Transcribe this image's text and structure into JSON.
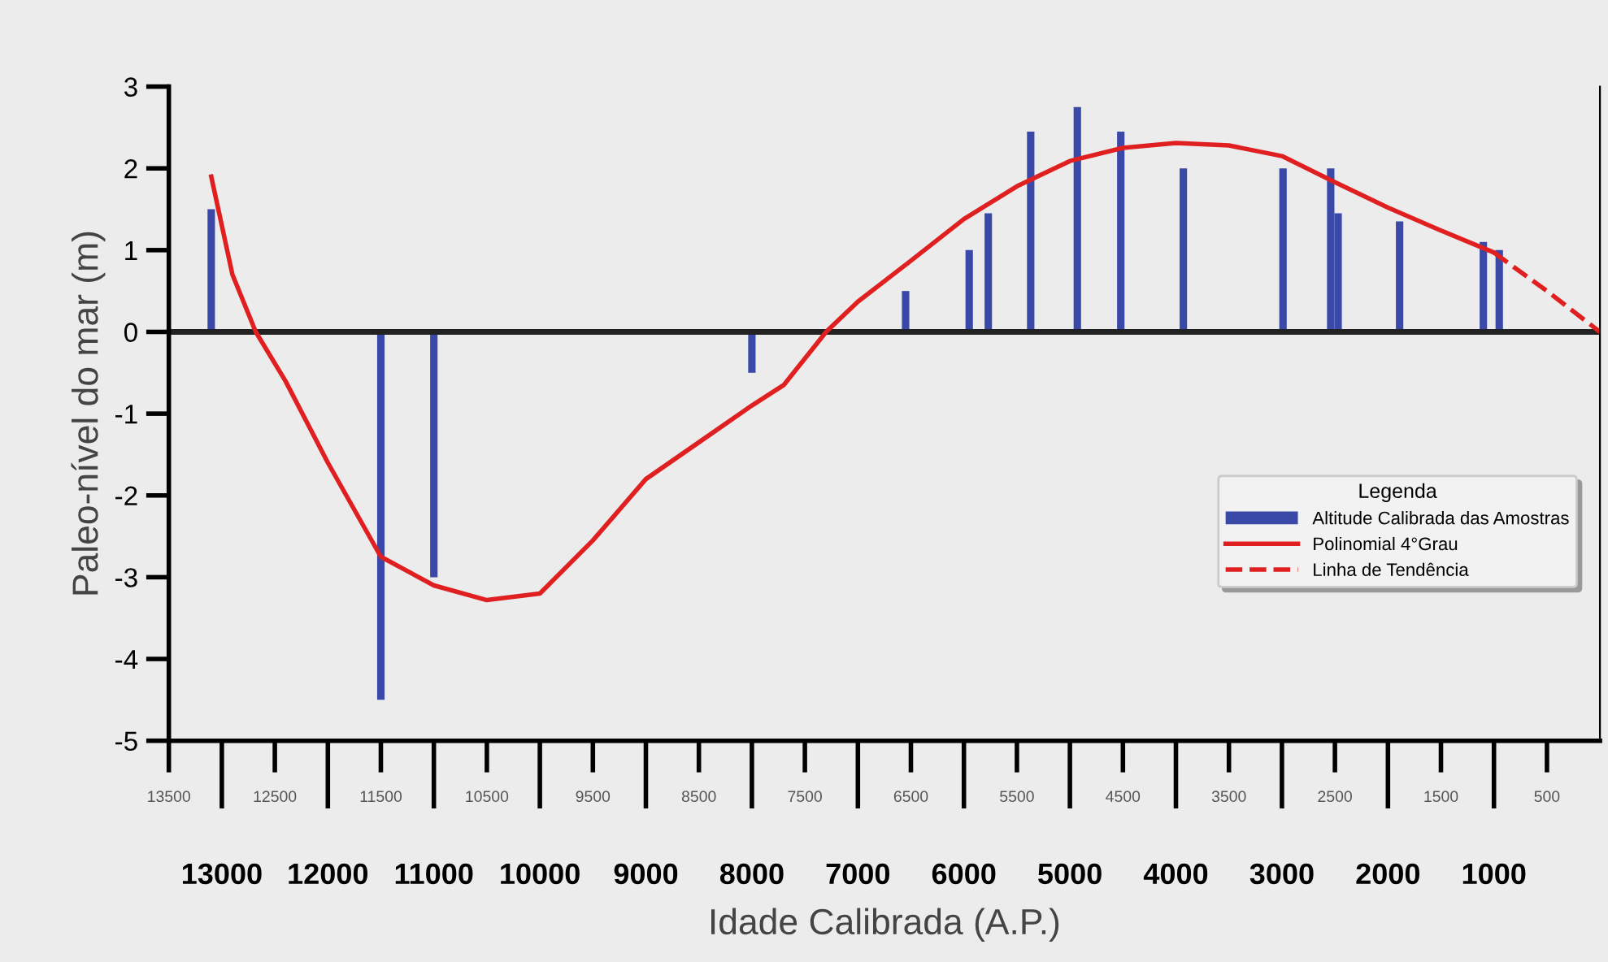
{
  "chart_data": {
    "type": "bar",
    "xlabel": "Idade Calibrada (A.P.)",
    "ylabel": "Paleo-nível do mar (m)",
    "legend_title": "Legenda",
    "legend": "right",
    "grid": false,
    "xlim": [
      13500,
      0
    ],
    "ylim": [
      -5,
      3
    ],
    "xticks": [
      13000,
      12000,
      11000,
      10000,
      9000,
      8000,
      7000,
      6000,
      5000,
      4000,
      3000,
      2000,
      1000
    ],
    "x2lim": [
      13500,
      0
    ],
    "x2ticks": [
      13500,
      12500,
      11500,
      10500,
      9500,
      8500,
      7500,
      6500,
      5500,
      4500,
      3500,
      2500,
      1500,
      500
    ],
    "yticks": [
      -5,
      -4,
      -3,
      -2,
      -1,
      0,
      1,
      2,
      3
    ],
    "ref_lines": [
      {
        "axis": "y",
        "value": 0,
        "label": null,
        "color": "#222222"
      }
    ],
    "series": [
      {
        "name": "Altitude Calibrada das Amostras",
        "color": "#3a48a8",
        "x": [
          13100,
          11500,
          11000,
          8000,
          6550,
          5950,
          5770,
          5370,
          4930,
          4520,
          3930,
          2990,
          2540,
          2470,
          1890,
          1100,
          950
        ],
        "values": [
          1.5,
          -4.5,
          -3.0,
          -0.5,
          0.5,
          1.0,
          1.45,
          2.45,
          2.75,
          2.45,
          2.0,
          2.0,
          2.0,
          1.45,
          1.35,
          1.1,
          1.0
        ]
      },
      {
        "name": "Polinomial 4°Grau",
        "type": "line",
        "line_style": "solid",
        "color": "#e02020",
        "x": [
          13100,
          12900,
          12680,
          12400,
          12000,
          11500,
          11000,
          10500,
          10000,
          9500,
          9000,
          8500,
          8000,
          7700,
          7300,
          7000,
          6500,
          6000,
          5500,
          5000,
          4500,
          4000,
          3500,
          3000,
          2500,
          2000,
          1500,
          1000
        ],
        "values": [
          1.9,
          0.7,
          0.0,
          -0.6,
          -1.6,
          -2.75,
          -3.1,
          -3.28,
          -3.2,
          -2.55,
          -1.8,
          -1.35,
          -0.9,
          -0.65,
          0.0,
          0.37,
          0.87,
          1.38,
          1.78,
          2.09,
          2.25,
          2.31,
          2.28,
          2.15,
          1.83,
          1.52,
          1.24,
          0.97
        ]
      },
      {
        "name": "Linha de Tendência",
        "type": "line",
        "line_style": "dashed",
        "color": "#e02020",
        "x": [
          1000,
          500,
          0
        ],
        "values": [
          0.97,
          0.5,
          0.0
        ]
      }
    ]
  }
}
